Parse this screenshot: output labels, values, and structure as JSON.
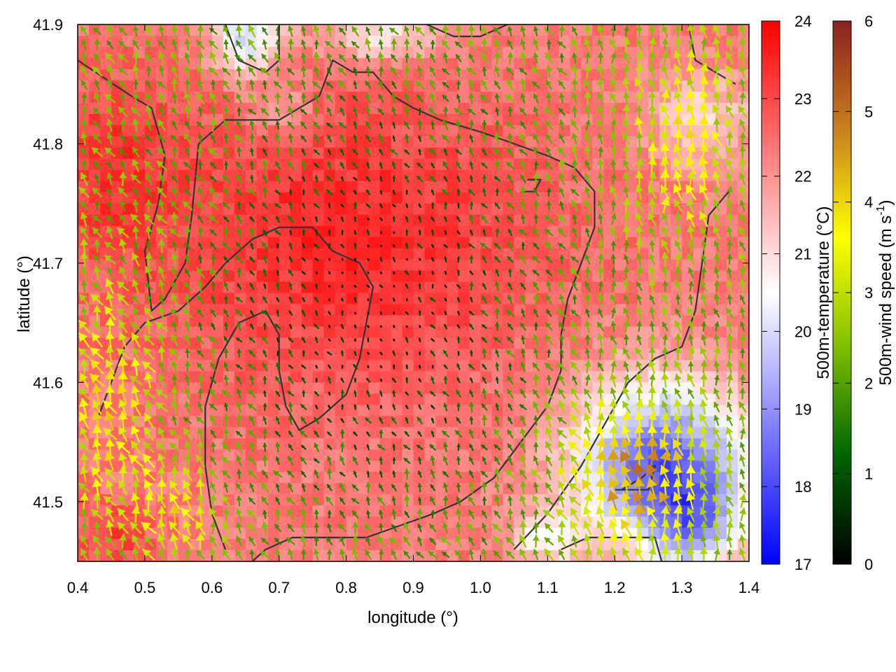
{
  "chart_data": {
    "type": "heatmap",
    "title": "",
    "xlabel": "longitude (°)",
    "ylabel": "latitude (°)",
    "xlim": [
      0.4,
      1.4
    ],
    "ylim": [
      41.45,
      41.9
    ],
    "x_ticks": [
      "0.4",
      "0.5",
      "0.6",
      "0.7",
      "0.8",
      "0.9",
      "1.0",
      "1.1",
      "1.2",
      "1.3",
      "1.4"
    ],
    "y_ticks": [
      "41.5",
      "41.6",
      "41.7",
      "41.8",
      "41.9"
    ],
    "grid": false,
    "temperature_colorbar": {
      "label": "500m-temperature (°C)",
      "range": [
        17,
        24
      ],
      "ticks": [
        "17",
        "18",
        "19",
        "20",
        "21",
        "22",
        "23",
        "24"
      ],
      "colors": [
        "#0000ff",
        "#ffffff",
        "#ff0000"
      ]
    },
    "wind_colorbar": {
      "label_main": "500m-wind speed (m s",
      "label_sup": "-1",
      "label_end": ")",
      "range": [
        0,
        6
      ],
      "ticks": [
        "0",
        "1",
        "2",
        "3",
        "4",
        "5",
        "6"
      ],
      "colors": [
        "#000000",
        "#006400",
        "#7fbf00",
        "#ffff00",
        "#c88020",
        "#8b2020"
      ]
    },
    "temperature_field": {
      "background": 22.3,
      "features": [
        {
          "lon": 0.8,
          "lat": 41.72,
          "amp": 1.2,
          "rlon": 0.28,
          "rlat": 0.12
        },
        {
          "lon": 0.45,
          "lat": 41.78,
          "amp": 0.9,
          "rlon": 0.1,
          "rlat": 0.08
        },
        {
          "lon": 0.45,
          "lat": 41.47,
          "amp": 0.8,
          "rlon": 0.06,
          "rlat": 0.03
        },
        {
          "lon": 0.65,
          "lat": 41.89,
          "amp": -2.6,
          "rlon": 0.05,
          "rlat": 0.03
        },
        {
          "lon": 0.85,
          "lat": 41.89,
          "amp": -1.5,
          "rlon": 0.1,
          "rlat": 0.02
        },
        {
          "lon": 1.27,
          "lat": 41.53,
          "amp": -4.0,
          "rlon": 0.13,
          "rlat": 0.07
        },
        {
          "lon": 1.32,
          "lat": 41.48,
          "amp": -2.0,
          "rlon": 0.06,
          "rlat": 0.04
        },
        {
          "lon": 1.1,
          "lat": 41.47,
          "amp": -1.8,
          "rlon": 0.05,
          "rlat": 0.02
        },
        {
          "lon": 1.33,
          "lat": 41.82,
          "amp": -1.2,
          "rlon": 0.08,
          "rlat": 0.04
        },
        {
          "lon": 0.7,
          "lat": 41.83,
          "amp": -1.0,
          "rlon": 0.05,
          "rlat": 0.02
        }
      ]
    },
    "wind_field": {
      "calm_center": [
        0.84,
        41.67
      ],
      "calm_radius": [
        0.2,
        0.15
      ],
      "fast_regions": [
        {
          "lon": 1.23,
          "lat": 41.52,
          "speed": 4.6,
          "rlon": 0.1,
          "rlat": 0.06
        },
        {
          "lon": 0.45,
          "lat": 41.58,
          "speed": 3.8,
          "rlon": 0.07,
          "rlat": 0.1
        },
        {
          "lon": 1.3,
          "lat": 41.8,
          "speed": 3.6,
          "rlon": 0.08,
          "rlat": 0.08
        },
        {
          "lon": 0.55,
          "lat": 41.49,
          "speed": 3.6,
          "rlon": 0.06,
          "rlat": 0.04
        }
      ],
      "base_speed": 2.2
    },
    "contours": [
      [
        [
          0.4,
          41.87
        ],
        [
          0.48,
          41.84
        ],
        [
          0.51,
          41.83
        ],
        [
          0.53,
          41.79
        ],
        [
          0.52,
          41.75
        ],
        [
          0.5,
          41.71
        ],
        [
          0.51,
          41.66
        ],
        [
          0.53,
          41.67
        ],
        [
          0.56,
          41.7
        ],
        [
          0.57,
          41.74
        ],
        [
          0.58,
          41.8
        ],
        [
          0.62,
          41.82
        ],
        [
          0.7,
          41.82
        ],
        [
          0.76,
          41.84
        ],
        [
          0.78,
          41.87
        ],
        [
          0.81,
          41.86
        ],
        [
          0.84,
          41.86
        ],
        [
          0.87,
          41.84
        ],
        [
          0.9,
          41.83
        ],
        [
          0.94,
          41.82
        ],
        [
          1.0,
          41.81
        ],
        [
          1.05,
          41.8
        ],
        [
          1.1,
          41.79
        ],
        [
          1.14,
          41.78
        ],
        [
          1.17,
          41.76
        ],
        [
          1.17,
          41.73
        ],
        [
          1.15,
          41.7
        ],
        [
          1.13,
          41.67
        ],
        [
          1.12,
          41.64
        ],
        [
          1.12,
          41.61
        ],
        [
          1.1,
          41.58
        ],
        [
          1.06,
          41.55
        ],
        [
          1.02,
          41.52
        ],
        [
          0.97,
          41.5
        ],
        [
          0.93,
          41.49
        ],
        [
          0.88,
          41.48
        ],
        [
          0.83,
          41.47
        ],
        [
          0.78,
          41.47
        ],
        [
          0.72,
          41.47
        ],
        [
          0.68,
          41.46
        ],
        [
          0.66,
          41.45
        ]
      ],
      [
        [
          0.43,
          41.57
        ],
        [
          0.45,
          41.6
        ],
        [
          0.47,
          41.63
        ],
        [
          0.5,
          41.65
        ],
        [
          0.55,
          41.66
        ],
        [
          0.59,
          41.68
        ],
        [
          0.62,
          41.7
        ],
        [
          0.66,
          41.72
        ],
        [
          0.7,
          41.73
        ],
        [
          0.75,
          41.73
        ],
        [
          0.78,
          41.71
        ],
        [
          0.82,
          41.7
        ],
        [
          0.84,
          41.68
        ],
        [
          0.83,
          41.65
        ],
        [
          0.82,
          41.62
        ],
        [
          0.8,
          41.59
        ],
        [
          0.76,
          41.57
        ],
        [
          0.73,
          41.56
        ],
        [
          0.71,
          41.58
        ],
        [
          0.7,
          41.61
        ],
        [
          0.7,
          41.64
        ],
        [
          0.68,
          41.66
        ],
        [
          0.64,
          41.65
        ],
        [
          0.61,
          41.62
        ],
        [
          0.59,
          41.58
        ],
        [
          0.59,
          41.53
        ],
        [
          0.6,
          41.49
        ],
        [
          0.62,
          41.46
        ]
      ],
      [
        [
          1.05,
          41.46
        ],
        [
          1.1,
          41.49
        ],
        [
          1.15,
          41.53
        ],
        [
          1.19,
          41.57
        ],
        [
          1.22,
          41.6
        ],
        [
          1.26,
          41.62
        ],
        [
          1.3,
          41.63
        ],
        [
          1.32,
          41.66
        ],
        [
          1.33,
          41.7
        ],
        [
          1.34,
          41.74
        ],
        [
          1.37,
          41.76
        ]
      ],
      [
        [
          1.2,
          41.51
        ],
        [
          1.25,
          41.51
        ],
        [
          1.26,
          41.53
        ],
        [
          1.24,
          41.52
        ],
        [
          1.21,
          41.51
        ]
      ],
      [
        [
          1.12,
          41.46
        ],
        [
          1.16,
          41.47
        ],
        [
          1.22,
          41.47
        ],
        [
          1.26,
          41.47
        ],
        [
          1.27,
          41.45
        ]
      ],
      [
        [
          1.31,
          41.9
        ],
        [
          1.32,
          41.87
        ],
        [
          1.35,
          41.86
        ],
        [
          1.38,
          41.85
        ]
      ],
      [
        [
          0.62,
          41.9
        ],
        [
          0.64,
          41.87
        ],
        [
          0.68,
          41.86
        ],
        [
          0.7,
          41.87
        ],
        [
          0.7,
          41.9
        ]
      ],
      [
        [
          0.92,
          41.9
        ],
        [
          0.96,
          41.89
        ],
        [
          1.0,
          41.89
        ],
        [
          1.04,
          41.9
        ]
      ],
      [
        [
          1.06,
          41.76
        ],
        [
          1.08,
          41.76
        ],
        [
          1.09,
          41.77
        ],
        [
          1.07,
          41.77
        ]
      ]
    ]
  }
}
